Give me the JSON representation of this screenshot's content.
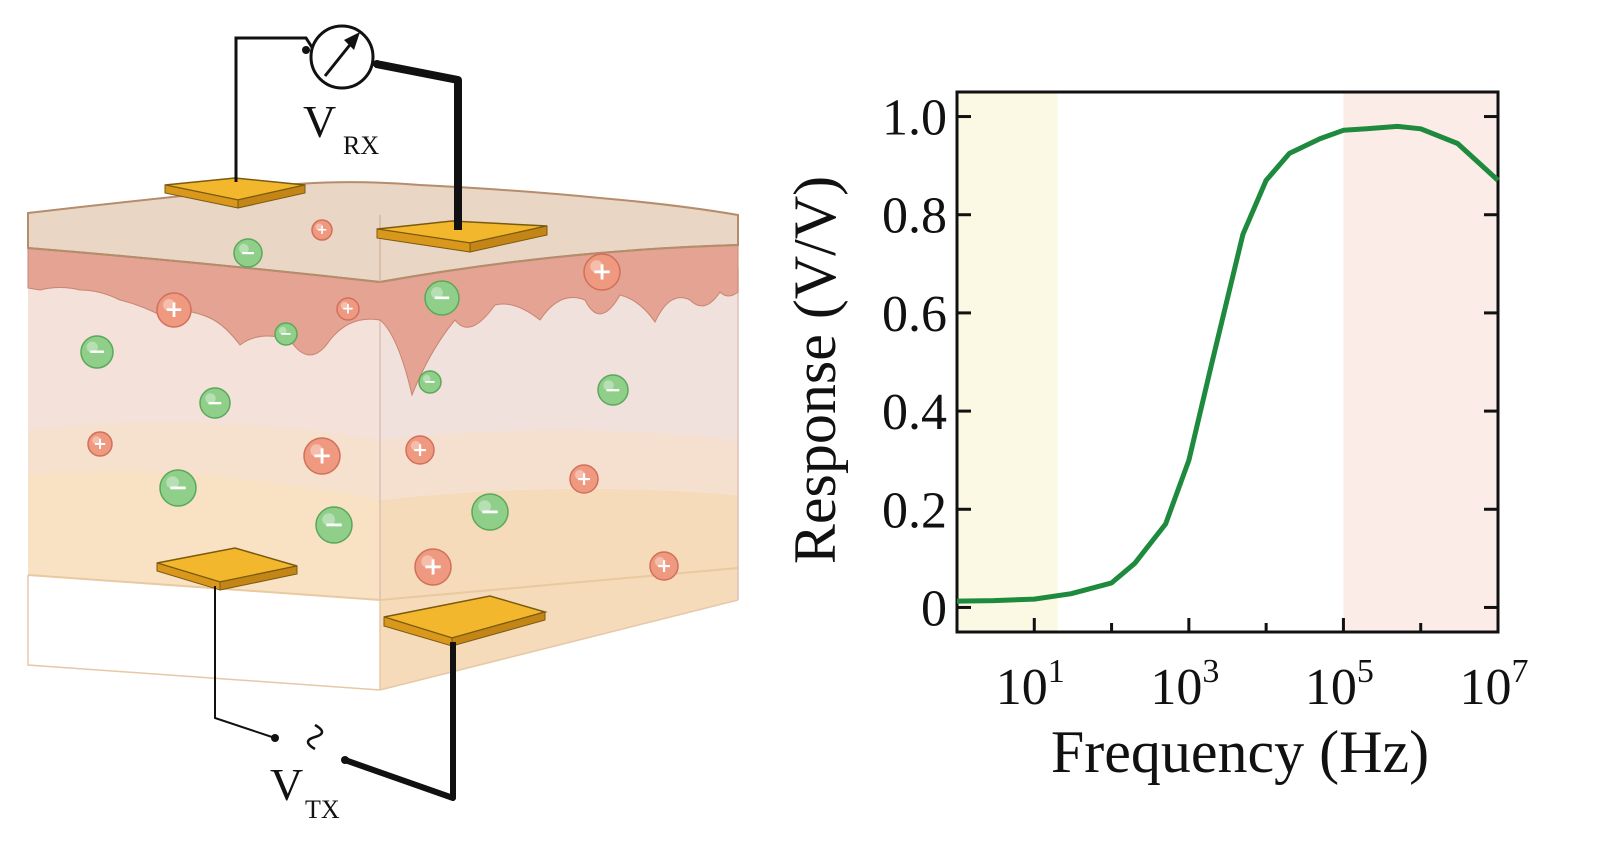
{
  "diagram": {
    "receiver_label": "V",
    "receiver_sub": "RX",
    "transmitter_label": "V",
    "transmitter_sub": "TX",
    "meter_icon": "voltmeter-icon",
    "source_icon": "ac-source-icon",
    "ion_positive_symbol": "+",
    "ion_negative_symbol": "−",
    "colors": {
      "electrode": "#f2b72c",
      "ion_positive": "#ef9a80",
      "ion_negative": "#8fcf8a",
      "dermis": "#e3a090",
      "epidermis": "#e6d2bf",
      "hypodermis": "#f7dfbd"
    }
  },
  "chart_data": {
    "type": "line",
    "title": "",
    "xlabel": "Frequency (Hz)",
    "ylabel": "Response (V/V)",
    "x_scale": "log",
    "xlim": [
      1,
      10000000
    ],
    "ylim": [
      -0.05,
      1.05
    ],
    "x_ticks": [
      {
        "value": 10,
        "base": "10",
        "exp": "1"
      },
      {
        "value": 1000,
        "base": "10",
        "exp": "3"
      },
      {
        "value": 100000,
        "base": "10",
        "exp": "5"
      },
      {
        "value": 10000000,
        "base": "10",
        "exp": "7"
      }
    ],
    "y_ticks": [
      {
        "value": 0,
        "label": "0"
      },
      {
        "value": 0.2,
        "label": "0.2"
      },
      {
        "value": 0.4,
        "label": "0.4"
      },
      {
        "value": 0.6,
        "label": "0.6"
      },
      {
        "value": 0.8,
        "label": "0.8"
      },
      {
        "value": 1.0,
        "label": "1.0"
      }
    ],
    "shaded_bands": [
      {
        "from": 1,
        "to": 20,
        "color": "#fbf8e4"
      },
      {
        "from": 100000,
        "to": 10000000,
        "color": "#fcece8"
      }
    ],
    "series": [
      {
        "color": "#1e8a3e",
        "x": [
          1,
          3,
          10,
          30,
          100,
          200,
          500,
          1000,
          2000,
          5000,
          10000,
          20000,
          50000,
          100000,
          200000,
          500000,
          1000000,
          3000000,
          10000000
        ],
        "y": [
          0.013,
          0.014,
          0.017,
          0.028,
          0.05,
          0.09,
          0.17,
          0.3,
          0.5,
          0.76,
          0.87,
          0.925,
          0.955,
          0.972,
          0.975,
          0.98,
          0.975,
          0.945,
          0.87
        ]
      }
    ],
    "grid": false,
    "legend": "none"
  }
}
